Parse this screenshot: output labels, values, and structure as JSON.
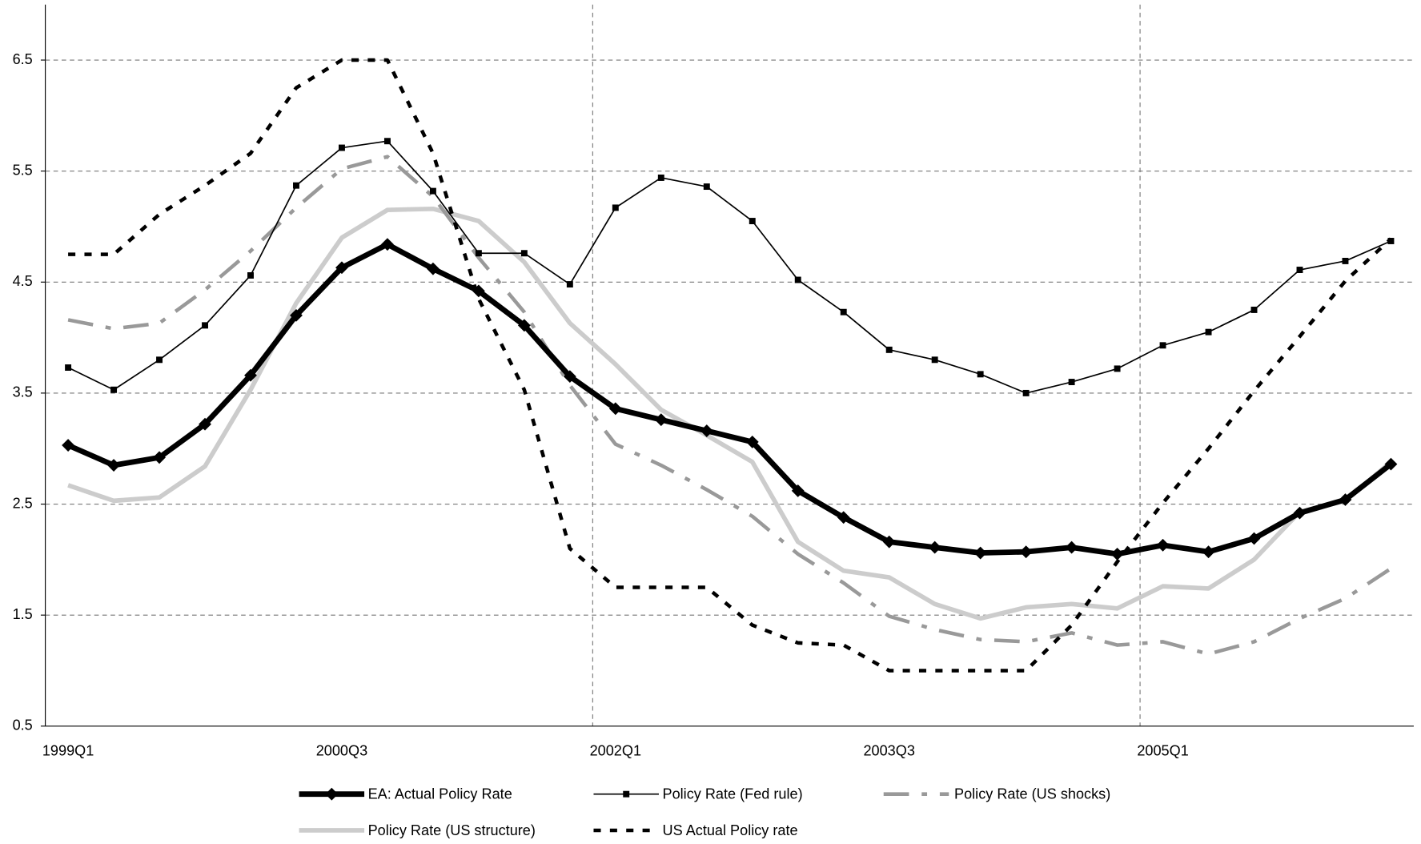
{
  "chart_data": {
    "type": "line",
    "categories": [
      "1999Q1",
      null,
      null,
      null,
      null,
      null,
      "2000Q3",
      null,
      null,
      null,
      null,
      null,
      "2002Q1",
      null,
      null,
      null,
      null,
      null,
      "2003Q3",
      null,
      null,
      null,
      null,
      null,
      "2005Q1",
      null,
      null,
      null,
      null,
      null
    ],
    "ylim": [
      0.5,
      7.0
    ],
    "yticks": [
      0.5,
      1.5,
      2.5,
      3.5,
      4.5,
      5.5,
      6.5
    ],
    "grid": true,
    "series": [
      {
        "name": "EA: Actual Policy Rate",
        "color": "#000000",
        "values": [
          3.03,
          2.85,
          2.92,
          3.22,
          3.66,
          4.2,
          4.63,
          4.84,
          4.62,
          4.42,
          4.11,
          3.65,
          3.36,
          3.26,
          3.16,
          3.06,
          2.62,
          2.38,
          2.16,
          2.11,
          2.06,
          2.07,
          2.11,
          2.05,
          2.13,
          2.07,
          2.19,
          2.42,
          2.54,
          2.86
        ]
      },
      {
        "name": "Policy Rate (Fed rule)",
        "color": "#000000",
        "values": [
          3.73,
          3.53,
          3.8,
          4.11,
          4.56,
          5.37,
          5.71,
          5.77,
          5.32,
          4.76,
          4.76,
          4.48,
          5.17,
          5.44,
          5.36,
          5.05,
          4.52,
          4.23,
          3.89,
          3.8,
          3.67,
          3.5,
          3.6,
          3.72,
          3.93,
          4.05,
          4.25,
          4.61,
          4.69,
          4.87
        ]
      },
      {
        "name": "Policy Rate (US shocks)",
        "color": "#999999",
        "values": [
          4.16,
          4.08,
          4.13,
          4.43,
          4.78,
          5.17,
          5.52,
          5.63,
          5.27,
          4.72,
          4.23,
          3.57,
          3.04,
          2.85,
          2.63,
          2.39,
          2.05,
          1.79,
          1.49,
          1.37,
          1.28,
          1.26,
          1.34,
          1.23,
          1.26,
          1.15,
          1.26,
          1.47,
          1.65,
          1.92
        ]
      },
      {
        "name": "Policy Rate (US structure)",
        "color": "#cccccc",
        "values": [
          2.67,
          2.53,
          2.56,
          2.84,
          3.53,
          4.31,
          4.9,
          5.15,
          5.16,
          5.05,
          4.68,
          4.13,
          3.76,
          3.35,
          3.12,
          2.88,
          2.16,
          1.9,
          1.84,
          1.6,
          1.47,
          1.57,
          1.6,
          1.56,
          1.76,
          1.74,
          2.0,
          2.43,
          2.53,
          2.88
        ]
      },
      {
        "name": "US Actual Policy rate",
        "color": "#000000",
        "values": [
          4.75,
          4.75,
          5.11,
          5.37,
          5.66,
          6.25,
          6.5,
          6.5,
          5.66,
          4.35,
          3.53,
          2.1,
          1.75,
          1.75,
          1.75,
          1.41,
          1.25,
          1.23,
          1.0,
          1.0,
          1.0,
          1.0,
          1.41,
          1.98,
          2.51,
          3.0,
          3.52,
          4.01,
          4.51,
          4.89
        ]
      }
    ]
  }
}
